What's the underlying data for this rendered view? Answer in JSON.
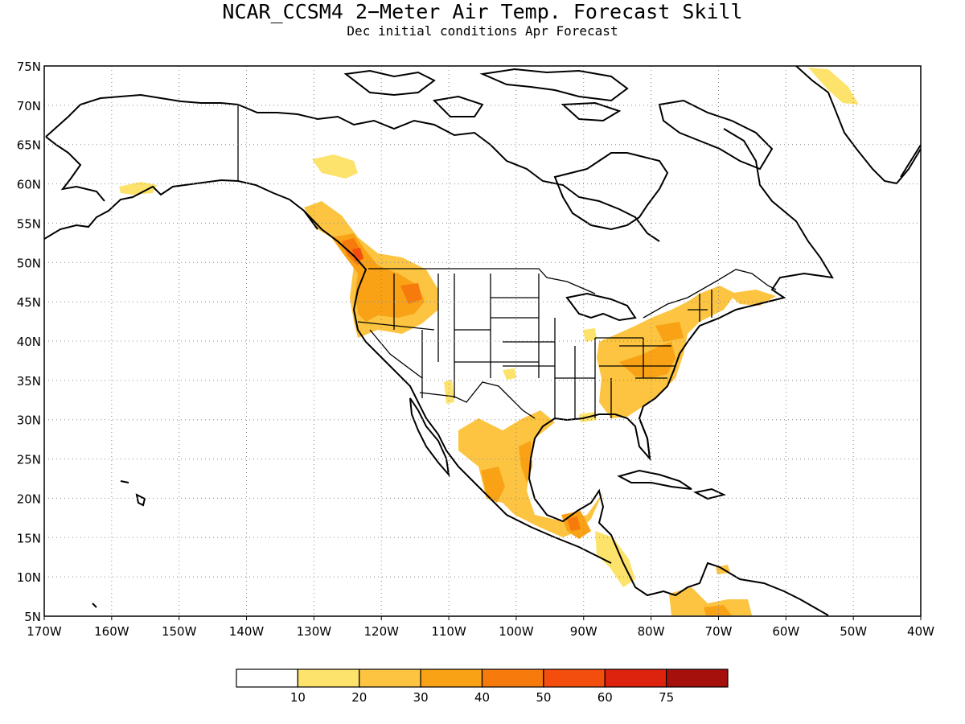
{
  "title": "NCAR_CCSM4 2−Meter Air Temp. Forecast Skill",
  "subtitle": "Dec initial conditions  Apr Forecast",
  "map": {
    "lon_labels": [
      "170W",
      "160W",
      "150W",
      "140W",
      "130W",
      "120W",
      "110W",
      "100W",
      "90W",
      "80W",
      "70W",
      "60W",
      "50W",
      "40W"
    ],
    "lat_labels": [
      "75N",
      "70N",
      "65N",
      "60N",
      "55N",
      "50N",
      "45N",
      "40N",
      "35N",
      "30N",
      "25N",
      "20N",
      "15N",
      "10N",
      "5N"
    ],
    "lon_range": [
      -170,
      -40
    ],
    "lat_range": [
      5,
      75
    ],
    "gridlines": "dotted",
    "skill_regions": [
      {
        "name": "Pacific Northwest / Columbia Basin",
        "level": 3
      },
      {
        "name": "British Columbia interior",
        "level": 2
      },
      {
        "name": "Southern Alaska coast",
        "level": 1
      },
      {
        "name": "Yukon / northern BC",
        "level": 1
      },
      {
        "name": "Ohio Valley / Mid-Atlantic / Southeast US",
        "level": 2
      },
      {
        "name": "New England",
        "level": 2
      },
      {
        "name": "Northern and central Mexico",
        "level": 2
      },
      {
        "name": "Southern Mexico / Guatemala",
        "level": 3
      },
      {
        "name": "Central America",
        "level": 1
      },
      {
        "name": "Northern South America",
        "level": 2
      },
      {
        "name": "Southeastern Greenland",
        "level": 1
      }
    ]
  },
  "colorbar": {
    "labels": [
      "10",
      "20",
      "30",
      "40",
      "50",
      "60",
      "75"
    ],
    "colors": [
      "#ffffff",
      "#fde36b",
      "#fcc441",
      "#f9a215",
      "#f77a0d",
      "#f44e0f",
      "#dd220e",
      "#a50f0c"
    ]
  }
}
